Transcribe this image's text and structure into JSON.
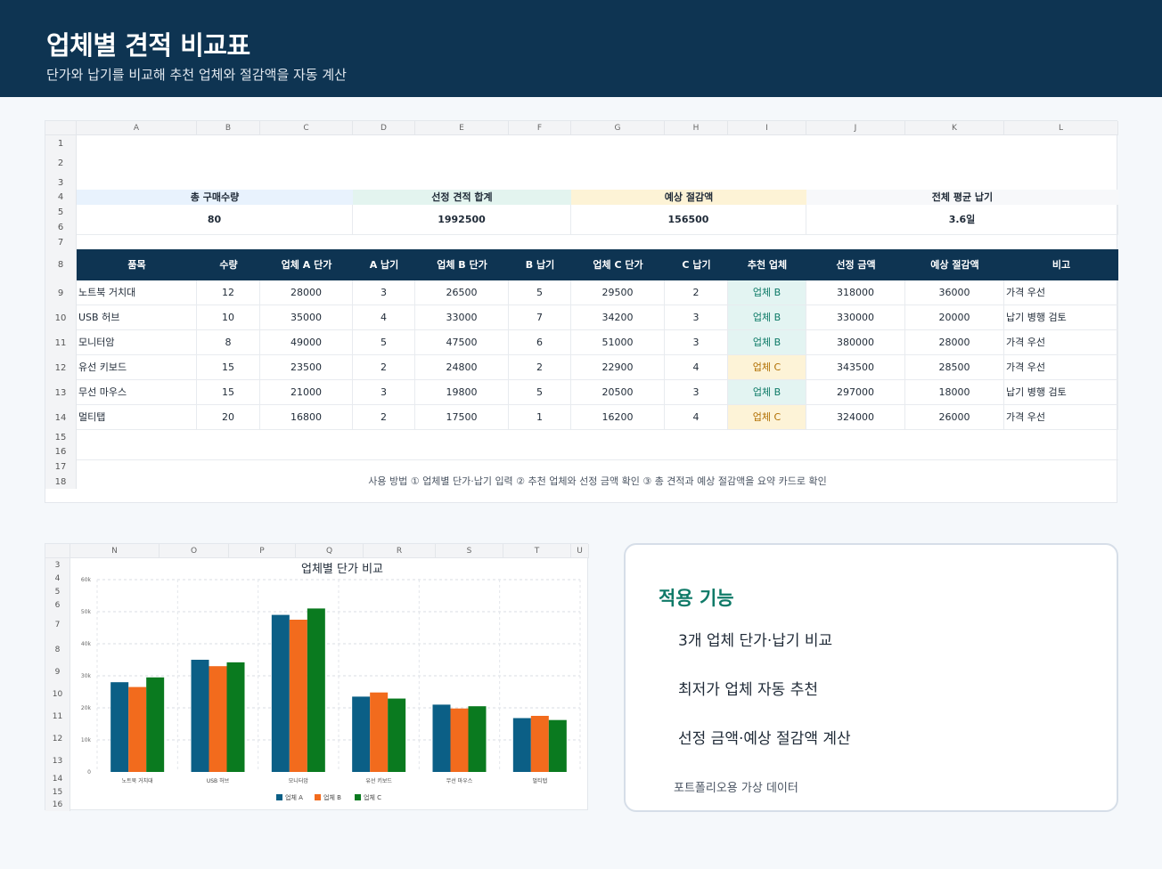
{
  "header": {
    "title": "업체별 견적 비교표",
    "subtitle": "단가와 납기를 비교해 추천 업체와 절감액을 자동 계산"
  },
  "sheet": {
    "columns": [
      "A",
      "B",
      "C",
      "D",
      "E",
      "F",
      "G",
      "H",
      "I",
      "J",
      "K",
      "L"
    ],
    "rows": [
      "1",
      "2",
      "3",
      "4",
      "5",
      "6",
      "7",
      "8",
      "9",
      "10",
      "11",
      "12",
      "13",
      "14",
      "15",
      "16",
      "17",
      "18"
    ]
  },
  "summary": [
    {
      "label": "총 구매수량",
      "value": "80",
      "color": "#e8f2fd"
    },
    {
      "label": "선정 견적 합계",
      "value": "1992500",
      "color": "#e3f4ef"
    },
    {
      "label": "예상 절감액",
      "value": "156500",
      "color": "#fdf3d6"
    },
    {
      "label": "전체 평균 납기",
      "value": "3.6일",
      "color": "#f7f8fa"
    }
  ],
  "table": {
    "headers": [
      "품목",
      "수량",
      "업체 A 단가",
      "A 납기",
      "업체 B 단가",
      "B 납기",
      "업체 C 단가",
      "C 납기",
      "추천 업체",
      "선정 금액",
      "예상 절감액",
      "비고"
    ],
    "rows": [
      [
        "노트북 거치대",
        "12",
        "28000",
        "3",
        "26500",
        "5",
        "29500",
        "2",
        "업체 B",
        "318000",
        "36000",
        "가격 우선"
      ],
      [
        "USB 허브",
        "10",
        "35000",
        "4",
        "33000",
        "7",
        "34200",
        "3",
        "업체 B",
        "330000",
        "20000",
        "납기 병행 검토"
      ],
      [
        "모니터암",
        "8",
        "49000",
        "5",
        "47500",
        "6",
        "51000",
        "3",
        "업체 B",
        "380000",
        "28000",
        "가격 우선"
      ],
      [
        "유선 키보드",
        "15",
        "23500",
        "2",
        "24800",
        "2",
        "22900",
        "4",
        "업체 C",
        "343500",
        "28500",
        "가격 우선"
      ],
      [
        "무선 마우스",
        "15",
        "21000",
        "3",
        "19800",
        "5",
        "20500",
        "3",
        "업체 B",
        "297000",
        "18000",
        "납기 병행 검토"
      ],
      [
        "멀티탭",
        "20",
        "16800",
        "2",
        "17500",
        "1",
        "16200",
        "4",
        "업체 C",
        "324000",
        "26000",
        "가격 우선"
      ]
    ]
  },
  "usage_note": "사용 방법 ① 업체별 단가·납기 입력 ② 추천 업체와 선정 금액 확인 ③ 총 견적과 예상 절감액을 요약 카드로 확인",
  "chart_sheet": {
    "columns": [
      "N",
      "O",
      "P",
      "Q",
      "R",
      "S",
      "T",
      "U"
    ],
    "rows": [
      "3",
      "4",
      "5",
      "6",
      "7",
      "8",
      "9",
      "10",
      "11",
      "12",
      "13",
      "14",
      "15",
      "16"
    ]
  },
  "chart_data": {
    "type": "bar",
    "title": "업체별 단가 비교",
    "categories": [
      "노트북 거치대",
      "USB 허브",
      "모니터암",
      "유선 키보드",
      "무선 마우스",
      "멀티탭"
    ],
    "series": [
      {
        "name": "업체 A",
        "color": "#0b5f86",
        "values": [
          28000,
          35000,
          49000,
          23500,
          21000,
          16800
        ]
      },
      {
        "name": "업체 B",
        "color": "#f26b1d",
        "values": [
          26500,
          33000,
          47500,
          24800,
          19800,
          17500
        ]
      },
      {
        "name": "업체 C",
        "color": "#0a7a1f",
        "values": [
          29500,
          34200,
          51000,
          22900,
          20500,
          16200
        ]
      }
    ],
    "y_ticks": [
      "0",
      "10k",
      "20k",
      "30k",
      "40k",
      "50k",
      "60k"
    ],
    "ylim": [
      0,
      60000
    ],
    "grid": true,
    "legend": "bottom"
  },
  "features": {
    "title": "적용 기능",
    "items": [
      "3개 업체 단가·납기 비교",
      "최저가 업체 자동 추천",
      "선정 금액·예상 절감액 계산"
    ],
    "note": "포트폴리오용 가상 데이터"
  }
}
